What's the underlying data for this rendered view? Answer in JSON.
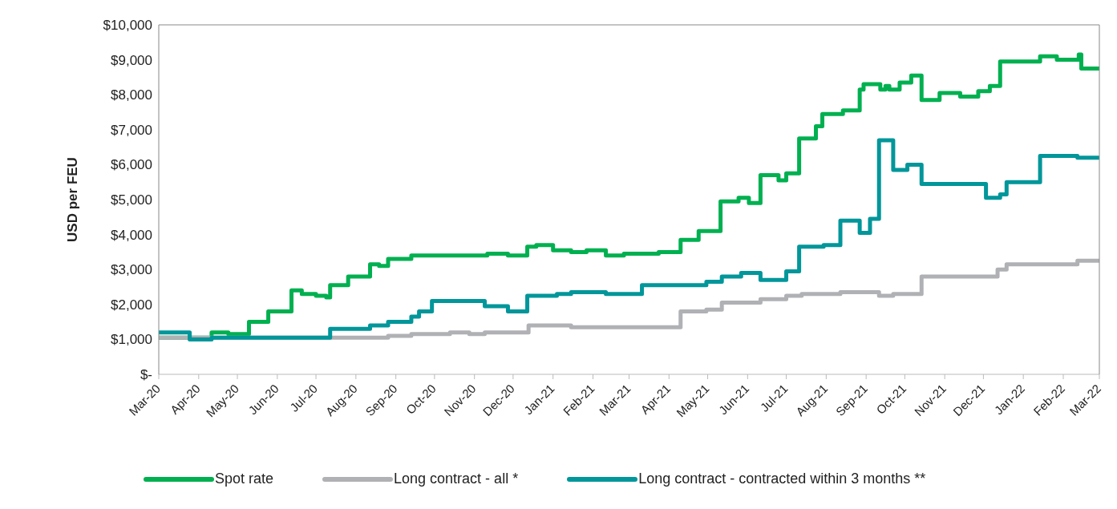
{
  "chart_data": {
    "type": "step",
    "ylabel": "USD per FEU",
    "xlim": [
      "2020-03-01",
      "2022-03-01"
    ],
    "xticks": [
      {
        "value": "2020-03",
        "label": "Mar-20"
      },
      {
        "value": "2020-04",
        "label": "Apr-20"
      },
      {
        "value": "2020-05",
        "label": "May-20"
      },
      {
        "value": "2020-06",
        "label": "Jun-20"
      },
      {
        "value": "2020-07",
        "label": "Jul-20"
      },
      {
        "value": "2020-08",
        "label": "Aug-20"
      },
      {
        "value": "2020-09",
        "label": "Sep-20"
      },
      {
        "value": "2020-10",
        "label": "Oct-20"
      },
      {
        "value": "2020-11",
        "label": "Nov-20"
      },
      {
        "value": "2020-12",
        "label": "Dec-20"
      },
      {
        "value": "2021-01",
        "label": "Jan-21"
      },
      {
        "value": "2021-02",
        "label": "Feb-21"
      },
      {
        "value": "2021-03",
        "label": "Mar-21"
      },
      {
        "value": "2021-04",
        "label": "Apr-21"
      },
      {
        "value": "2021-05",
        "label": "May-21"
      },
      {
        "value": "2021-06",
        "label": "Jun-21"
      },
      {
        "value": "2021-07",
        "label": "Jul-21"
      },
      {
        "value": "2021-08",
        "label": "Aug-21"
      },
      {
        "value": "2021-09",
        "label": "Sep-21"
      },
      {
        "value": "2021-10",
        "label": "Oct-21"
      },
      {
        "value": "2021-11",
        "label": "Nov-21"
      },
      {
        "value": "2021-12",
        "label": "Dec-21"
      },
      {
        "value": "2022-01",
        "label": "Jan-22"
      },
      {
        "value": "2022-02",
        "label": "Feb-22"
      },
      {
        "value": "2022-03",
        "label": "Mar-22"
      }
    ],
    "ylim": [
      0,
      10000
    ],
    "yticks": [
      {
        "value": 0,
        "label": "$-"
      },
      {
        "value": 1000,
        "label": "$1,000"
      },
      {
        "value": 2000,
        "label": "$2,000"
      },
      {
        "value": 3000,
        "label": "$3,000"
      },
      {
        "value": 4000,
        "label": "$4,000"
      },
      {
        "value": 5000,
        "label": "$5,000"
      },
      {
        "value": 6000,
        "label": "$6,000"
      },
      {
        "value": 7000,
        "label": "$7,000"
      },
      {
        "value": 8000,
        "label": "$8,000"
      },
      {
        "value": 9000,
        "label": "$9,000"
      },
      {
        "value": 10000,
        "label": "$10,000"
      }
    ],
    "legend": "bottom",
    "marker": "none",
    "line_style": "solid",
    "series": [
      {
        "name": "Spot rate",
        "color": "#00b050",
        "x": [
          "2020-03-01",
          "2020-04-11",
          "2020-04-24",
          "2020-05-10",
          "2020-05-25",
          "2020-06-12",
          "2020-06-20",
          "2020-07-01",
          "2020-07-09",
          "2020-07-12",
          "2020-07-26",
          "2020-08-12",
          "2020-08-19",
          "2020-08-26",
          "2020-09-13",
          "2020-11-11",
          "2020-11-27",
          "2020-12-12",
          "2020-12-19",
          "2021-01-01",
          "2021-01-15",
          "2021-01-27",
          "2021-02-11",
          "2021-02-25",
          "2021-03-24",
          "2021-04-10",
          "2021-04-24",
          "2021-05-11",
          "2021-05-25",
          "2021-06-02",
          "2021-06-11",
          "2021-06-25",
          "2021-07-01",
          "2021-07-11",
          "2021-07-24",
          "2021-07-29",
          "2021-08-14",
          "2021-08-27",
          "2021-08-30",
          "2021-09-12",
          "2021-09-16",
          "2021-09-19",
          "2021-09-27",
          "2021-10-06",
          "2021-10-14",
          "2021-10-28",
          "2021-11-13",
          "2021-11-27",
          "2021-12-06",
          "2021-12-14",
          "2022-01-14",
          "2022-01-27",
          "2022-02-13",
          "2022-02-15",
          "2022-03-01"
        ],
        "values": [
          1050,
          1200,
          1150,
          1500,
          1800,
          2400,
          2300,
          2250,
          2200,
          2550,
          2800,
          3150,
          3100,
          3300,
          3400,
          3450,
          3400,
          3650,
          3700,
          3550,
          3500,
          3550,
          3400,
          3450,
          3500,
          3850,
          4100,
          4950,
          5050,
          4900,
          5700,
          5550,
          5750,
          6750,
          7100,
          7450,
          7550,
          8150,
          8300,
          8150,
          8250,
          8150,
          8350,
          8550,
          7850,
          8050,
          7950,
          8100,
          8250,
          8950,
          9100,
          9000,
          9150,
          8750,
          8700
        ]
      },
      {
        "name": "Long contract - all *",
        "color": "#b0b1b4",
        "x": [
          "2020-03-01",
          "2020-08-26",
          "2020-09-13",
          "2020-10-13",
          "2020-10-28",
          "2020-11-09",
          "2020-12-13",
          "2021-01-15",
          "2021-04-10",
          "2021-04-30",
          "2021-05-12",
          "2021-06-11",
          "2021-07-01",
          "2021-07-13",
          "2021-08-12",
          "2021-09-11",
          "2021-09-22",
          "2021-10-14",
          "2021-12-12",
          "2021-12-19",
          "2022-02-12",
          "2022-03-01"
        ],
        "values": [
          1050,
          1100,
          1150,
          1200,
          1150,
          1200,
          1400,
          1350,
          1800,
          1850,
          2050,
          2150,
          2250,
          2300,
          2350,
          2250,
          2300,
          2800,
          3000,
          3150,
          3250,
          3250
        ]
      },
      {
        "name": "Long contract - contracted within 3 months **",
        "color": "#00969a",
        "x": [
          "2020-03-01",
          "2020-03-25",
          "2020-04-11",
          "2020-07-12",
          "2020-08-12",
          "2020-08-26",
          "2020-09-13",
          "2020-09-19",
          "2020-09-29",
          "2020-11-09",
          "2020-11-27",
          "2020-12-12",
          "2021-01-04",
          "2021-01-15",
          "2021-02-11",
          "2021-03-11",
          "2021-04-30",
          "2021-05-12",
          "2021-05-27",
          "2021-06-11",
          "2021-07-01",
          "2021-07-11",
          "2021-07-30",
          "2021-08-12",
          "2021-08-27",
          "2021-09-04",
          "2021-09-11",
          "2021-09-22",
          "2021-10-03",
          "2021-10-14",
          "2021-12-03",
          "2021-12-14",
          "2021-12-19",
          "2022-01-14",
          "2022-02-12",
          "2022-03-01"
        ],
        "values": [
          1200,
          1000,
          1050,
          1300,
          1400,
          1500,
          1650,
          1800,
          2100,
          1950,
          1800,
          2250,
          2300,
          2350,
          2300,
          2550,
          2650,
          2800,
          2900,
          2700,
          2950,
          3650,
          3700,
          4400,
          4050,
          4450,
          6700,
          5850,
          6000,
          5450,
          5050,
          5150,
          5500,
          6250,
          6200,
          6200
        ]
      }
    ]
  }
}
